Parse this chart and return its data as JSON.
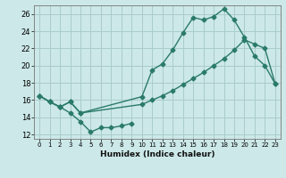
{
  "xlabel": "Humidex (Indice chaleur)",
  "bg_color": "#cce8e8",
  "grid_color": "#aacccc",
  "line_color": "#2a7a6a",
  "xlim": [
    -0.5,
    23.5
  ],
  "ylim": [
    11.5,
    27
  ],
  "yticks": [
    12,
    14,
    16,
    18,
    20,
    22,
    24,
    26
  ],
  "xticks": [
    0,
    1,
    2,
    3,
    4,
    5,
    6,
    7,
    8,
    9,
    10,
    11,
    12,
    13,
    14,
    15,
    16,
    17,
    18,
    19,
    20,
    21,
    22,
    23
  ],
  "series1_x": [
    0,
    1,
    2,
    3,
    4,
    10,
    11,
    12,
    13,
    14,
    15,
    16,
    17,
    18,
    19,
    20,
    21,
    22,
    23
  ],
  "series1_y": [
    16.5,
    15.8,
    15.2,
    15.8,
    14.5,
    16.4,
    19.5,
    20.2,
    21.8,
    23.8,
    25.6,
    25.3,
    25.7,
    26.6,
    25.3,
    23.3,
    21.1,
    20.0,
    17.9
  ],
  "series2_x": [
    0,
    1,
    2,
    3,
    4,
    10,
    11,
    12,
    13,
    14,
    15,
    16,
    17,
    18,
    19,
    20,
    21,
    22,
    23
  ],
  "series2_y": [
    16.5,
    15.8,
    15.2,
    15.8,
    14.5,
    15.5,
    16.0,
    16.5,
    17.1,
    17.8,
    18.5,
    19.2,
    20.0,
    20.8,
    21.8,
    23.0,
    22.5,
    22.0,
    17.9
  ],
  "series3_x": [
    0,
    1,
    2,
    3,
    4,
    5,
    6,
    7,
    8,
    9
  ],
  "series3_y": [
    16.5,
    15.8,
    15.2,
    14.5,
    13.5,
    12.3,
    12.8,
    12.8,
    13.0,
    13.3
  ]
}
